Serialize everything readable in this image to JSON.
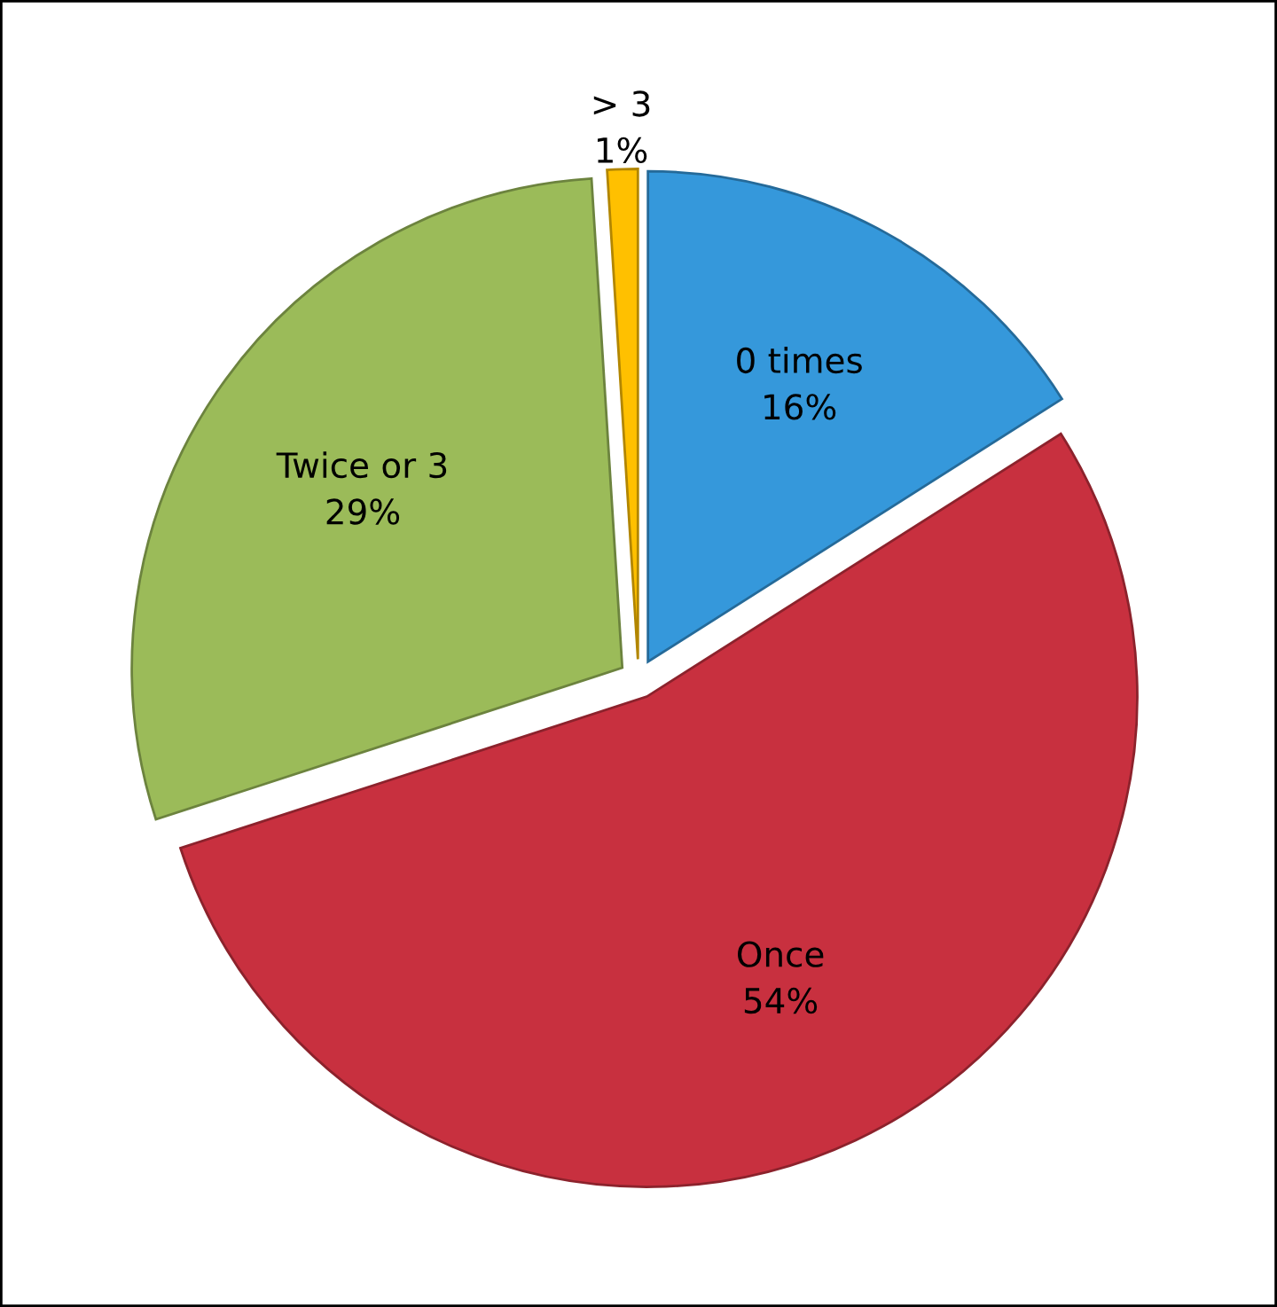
{
  "chart_data": {
    "type": "pie",
    "categories": [
      "0 times",
      "Once",
      "Twice or 3",
      "> 3"
    ],
    "values": [
      16,
      54,
      29,
      1
    ],
    "colors": [
      "#3598db",
      "#c8303f",
      "#9bbb59",
      "#ffc000"
    ],
    "value_labels": [
      "16%",
      "54%",
      "29%",
      "1%"
    ],
    "legend": false
  }
}
